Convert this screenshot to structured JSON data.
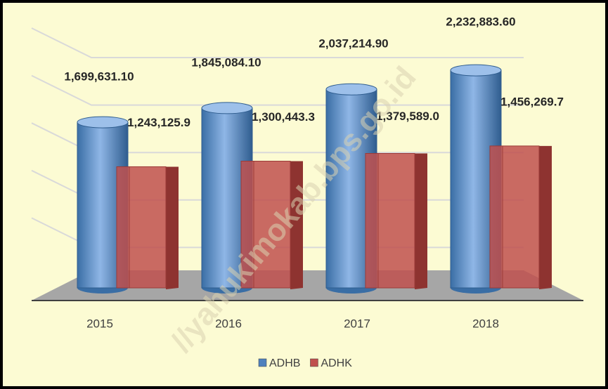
{
  "chart_data": {
    "type": "bar3d",
    "categories": [
      "2015",
      "2016",
      "2017",
      "2018"
    ],
    "series": [
      {
        "name": "ADHB",
        "color": "#4f81bd",
        "values": [
          1699631.1,
          1845084.1,
          2037214.9,
          2232883.6
        ],
        "value_labels": [
          "1,699,631.10",
          "1,845,084.10",
          "2,037,214.90",
          "2,232,883.60"
        ]
      },
      {
        "name": "ADHK",
        "color": "#c0504d",
        "values": [
          1243125.9,
          1300443.3,
          1379589.0,
          1456269.7
        ],
        "value_labels": [
          "1,243,125.9",
          "1,300,443.3",
          "1,379,589.0",
          "1,456,269.7"
        ]
      }
    ],
    "ylim": [
      0,
      2500000
    ],
    "yticks": [
      0,
      500000,
      1000000,
      1500000,
      2000000,
      2500000
    ],
    "grid": true,
    "legend": "bottom",
    "watermark": "//yahukimokab.bps.go.id"
  }
}
